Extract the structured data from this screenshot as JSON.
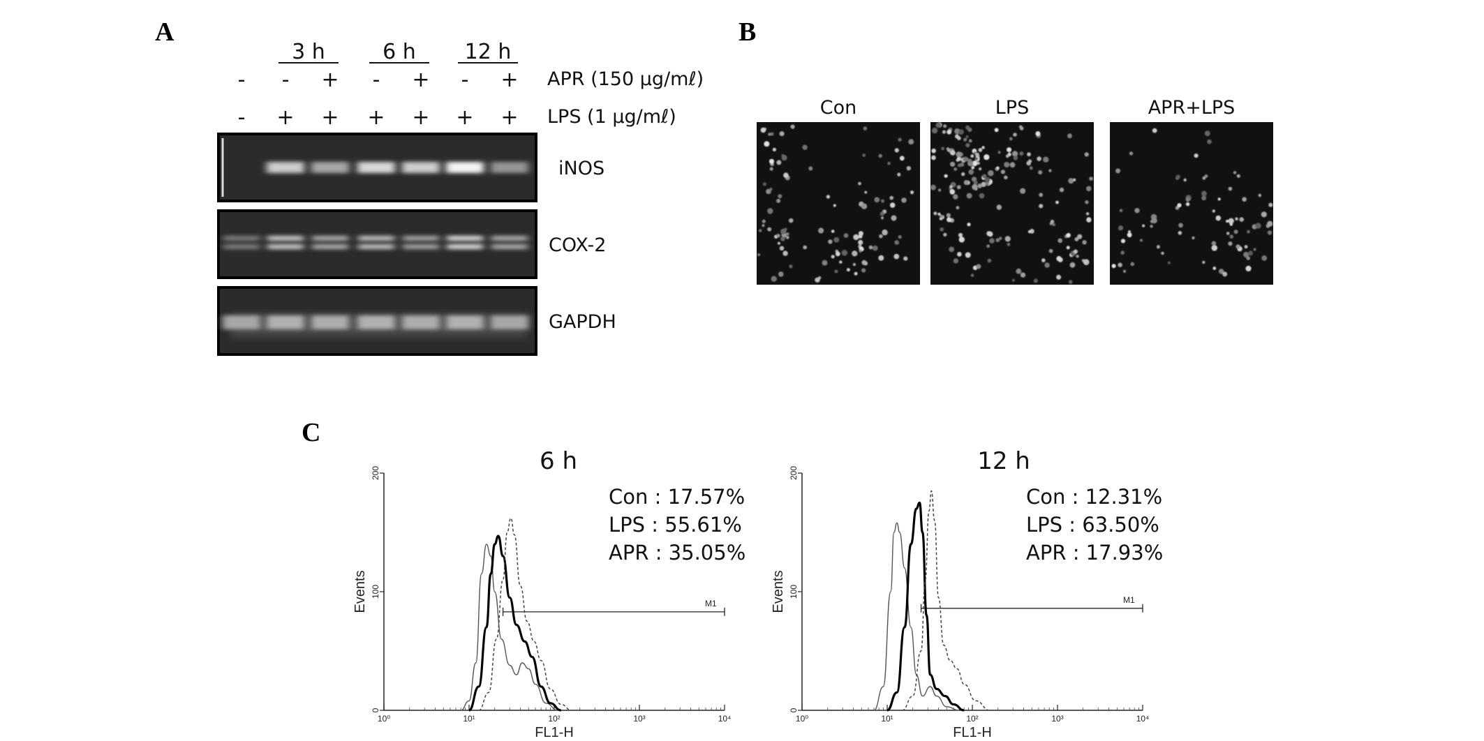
{
  "panels": {
    "a": {
      "letter": "A",
      "time_groups": [
        "3 h",
        "6 h",
        "12 h"
      ],
      "treatment_rows": [
        {
          "label": "APR (150 μg/mℓ)",
          "signs": [
            "-",
            "-",
            "+",
            "-",
            "+",
            "-",
            "+"
          ]
        },
        {
          "label": "LPS (1 μg/mℓ)",
          "signs": [
            "-",
            "+",
            "+",
            "+",
            "+",
            "+",
            "+"
          ]
        }
      ],
      "gels": [
        {
          "label": "iNOS",
          "band_intensity": [
            0.0,
            0.75,
            0.55,
            0.8,
            0.75,
            0.95,
            0.45
          ]
        },
        {
          "label": "COX-2",
          "band_intensity": [
            0.35,
            0.75,
            0.6,
            0.7,
            0.55,
            0.85,
            0.6
          ]
        },
        {
          "label": "GAPDH",
          "band_intensity": [
            0.55,
            0.6,
            0.58,
            0.6,
            0.58,
            0.6,
            0.55
          ]
        }
      ]
    },
    "b": {
      "letter": "B",
      "images": [
        {
          "label": "Con",
          "density": 0.5
        },
        {
          "label": "LPS",
          "density": 0.85
        },
        {
          "label": "APR+LPS",
          "density": 0.4
        }
      ]
    },
    "c": {
      "letter": "C"
    }
  },
  "chart_data": [
    {
      "type": "line",
      "title": "6 h",
      "xlabel": "FL1-H",
      "ylabel": "Events",
      "x_scale": "log",
      "xlim": [
        1,
        10000
      ],
      "ylim": [
        0,
        200
      ],
      "x_ticks": [
        "10⁰",
        "10¹",
        "10²",
        "10³",
        "10⁴"
      ],
      "y_ticks": [
        "0",
        "100",
        "200"
      ],
      "gate": {
        "label": "M1",
        "from": 25,
        "to": 10000,
        "y": 83
      },
      "annotations": [
        "Con : 17.57%",
        "LPS : 55.61%",
        "APR : 35.05%"
      ],
      "series": [
        {
          "style": "thin",
          "points": [
            [
              8,
              0
            ],
            [
              10,
              8
            ],
            [
              12,
              40
            ],
            [
              14,
              115
            ],
            [
              16,
              140
            ],
            [
              18,
              130
            ],
            [
              20,
              100
            ],
            [
              24,
              60
            ],
            [
              30,
              38
            ],
            [
              36,
              30
            ],
            [
              42,
              40
            ],
            [
              50,
              35
            ],
            [
              60,
              22
            ],
            [
              80,
              6
            ],
            [
              110,
              0
            ]
          ]
        },
        {
          "style": "thick",
          "points": [
            [
              10,
              0
            ],
            [
              13,
              20
            ],
            [
              16,
              70
            ],
            [
              18,
              115
            ],
            [
              20,
              140
            ],
            [
              22,
              147
            ],
            [
              25,
              130
            ],
            [
              30,
              95
            ],
            [
              36,
              72
            ],
            [
              45,
              58
            ],
            [
              55,
              45
            ],
            [
              70,
              20
            ],
            [
              90,
              6
            ],
            [
              120,
              0
            ]
          ]
        },
        {
          "style": "dashed",
          "points": [
            [
              13,
              0
            ],
            [
              17,
              15
            ],
            [
              21,
              60
            ],
            [
              25,
              110
            ],
            [
              28,
              150
            ],
            [
              31,
              162
            ],
            [
              34,
              148
            ],
            [
              40,
              105
            ],
            [
              48,
              75
            ],
            [
              58,
              58
            ],
            [
              70,
              42
            ],
            [
              90,
              18
            ],
            [
              120,
              5
            ],
            [
              160,
              0
            ]
          ]
        }
      ]
    },
    {
      "type": "line",
      "title": "12 h",
      "xlabel": "FL1-H",
      "ylabel": "Events",
      "x_scale": "log",
      "xlim": [
        1,
        10000
      ],
      "ylim": [
        0,
        200
      ],
      "x_ticks": [
        "10⁰",
        "10¹",
        "10²",
        "10³",
        "10⁴"
      ],
      "y_ticks": [
        "0",
        "100",
        "200"
      ],
      "gate": {
        "label": "M1",
        "from": 25,
        "to": 10000,
        "y": 86
      },
      "annotations": [
        "Con : 12.31%",
        "LPS : 63.50%",
        "APR : 17.93%"
      ],
      "series": [
        {
          "style": "thin",
          "points": [
            [
              7,
              0
            ],
            [
              9,
              20
            ],
            [
              11,
              100
            ],
            [
              12,
              150
            ],
            [
              13,
              158
            ],
            [
              14,
              150
            ],
            [
              16,
              120
            ],
            [
              19,
              70
            ],
            [
              22,
              30
            ],
            [
              26,
              12
            ],
            [
              32,
              20
            ],
            [
              38,
              12
            ],
            [
              50,
              3
            ],
            [
              70,
              0
            ]
          ]
        },
        {
          "style": "thick",
          "points": [
            [
              10,
              0
            ],
            [
              13,
              15
            ],
            [
              16,
              70
            ],
            [
              19,
              140
            ],
            [
              22,
              170
            ],
            [
              24,
              175
            ],
            [
              26,
              150
            ],
            [
              29,
              80
            ],
            [
              32,
              30
            ],
            [
              38,
              18
            ],
            [
              48,
              12
            ],
            [
              60,
              5
            ],
            [
              80,
              0
            ]
          ]
        },
        {
          "style": "dashed",
          "points": [
            [
              15,
              0
            ],
            [
              20,
              12
            ],
            [
              25,
              50
            ],
            [
              28,
              110
            ],
            [
              31,
              168
            ],
            [
              33,
              185
            ],
            [
              36,
              160
            ],
            [
              40,
              95
            ],
            [
              46,
              55
            ],
            [
              55,
              42
            ],
            [
              66,
              35
            ],
            [
              80,
              22
            ],
            [
              110,
              8
            ],
            [
              160,
              0
            ]
          ]
        }
      ]
    }
  ]
}
